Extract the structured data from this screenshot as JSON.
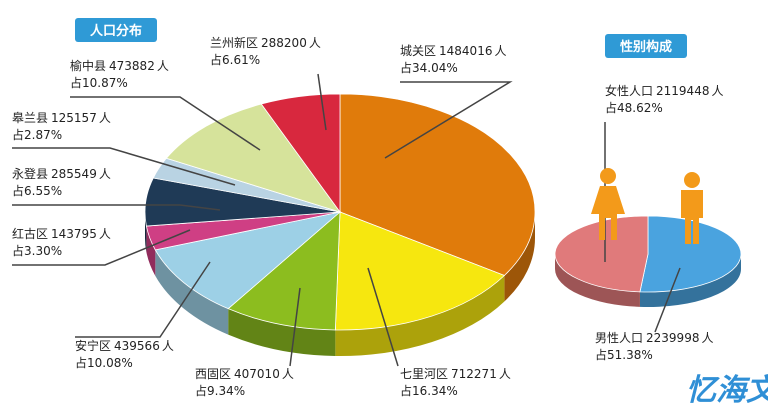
{
  "chart_data": [
    {
      "type": "pie",
      "title": "人口分布",
      "unit": "人",
      "categories": [
        "城关区",
        "七里河区",
        "西固区",
        "安宁区",
        "红古区",
        "永登县",
        "皋兰县",
        "榆中县",
        "兰州新区"
      ],
      "counts": [
        1484016,
        712271,
        407010,
        439566,
        143795,
        285549,
        125157,
        473882,
        288200
      ],
      "values": [
        34.04,
        16.34,
        9.34,
        10.08,
        3.3,
        6.55,
        2.87,
        10.87,
        6.61
      ],
      "value_labels": [
        "占34.04%",
        "占16.34%",
        "占9.34%",
        "占10.08%",
        "占3.30%",
        "占6.55%",
        "占2.87%",
        "占10.87%",
        "占6.61%"
      ],
      "colors": [
        "#e07b0b",
        "#f6e70f",
        "#8cbd1f",
        "#9dd0e6",
        "#cf3f84",
        "#1f3a56",
        "#b9d3e3",
        "#d6e39b",
        "#d8283e"
      ]
    },
    {
      "type": "pie",
      "title": "性别构成",
      "unit": "人",
      "categories": [
        "男性人口",
        "女性人口"
      ],
      "counts": [
        2239998,
        2119448
      ],
      "values": [
        51.38,
        48.62
      ],
      "value_labels": [
        "占51.38%",
        "占48.62%"
      ],
      "colors": [
        "#4aa3df",
        "#e07a7b"
      ]
    }
  ],
  "watermark": "忆海文库"
}
